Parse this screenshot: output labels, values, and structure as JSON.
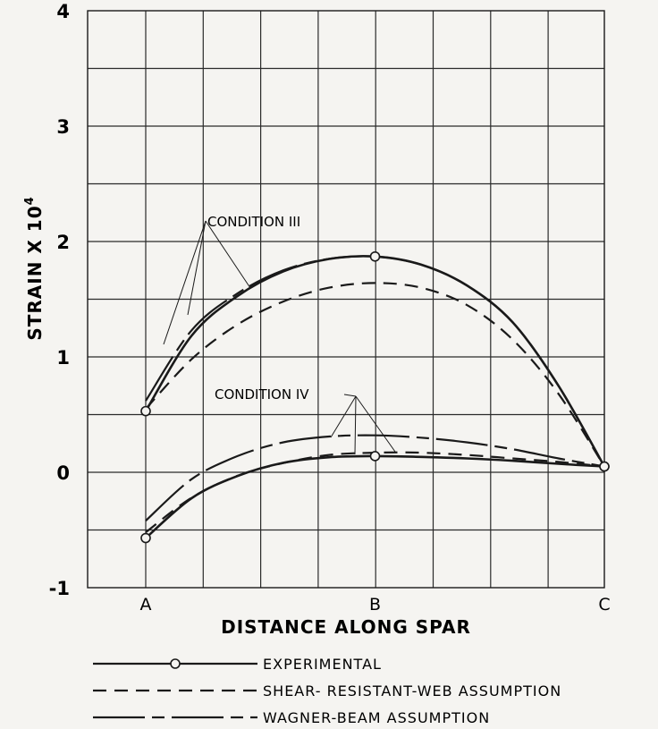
{
  "chart_data": {
    "type": "line",
    "xlabel": "DISTANCE ALONG SPAR",
    "ylabel": "STRAIN X 10",
    "ylabel_exp": "4",
    "x_categories": [
      "A",
      "B",
      "C"
    ],
    "ylim": [
      -1,
      4
    ],
    "y_ticks": [
      "-1",
      "0",
      "1",
      "2",
      "3",
      "4"
    ],
    "grid": true,
    "annotations": [
      "CONDITION III",
      "CONDITION IV"
    ],
    "legend_position": "bottom",
    "series": [
      {
        "name": "EXPERIMENTAL",
        "group": "CONDITION III",
        "style": "solid-circle",
        "x": [
          0,
          0.5,
          1.0
        ],
        "y": [
          0.53,
          1.87,
          0.05
        ]
      },
      {
        "name": "SHEAR- RESISTANT-WEB ASSUMPTION",
        "group": "CONDITION III",
        "style": "dashed",
        "x": [
          0,
          0.1,
          0.2,
          0.3,
          0.4,
          0.5,
          0.6,
          0.7,
          0.8,
          0.9,
          1.0
        ],
        "y": [
          0.55,
          0.98,
          1.28,
          1.48,
          1.6,
          1.64,
          1.6,
          1.45,
          1.15,
          0.68,
          0.05
        ]
      },
      {
        "name": "WAGNER-BEAM ASSUMPTION",
        "group": "CONDITION III",
        "style": "dash-long",
        "x": [
          0,
          0.1,
          0.2,
          0.3,
          0.4,
          0.5,
          0.6,
          0.7,
          0.8,
          0.9,
          1.0
        ],
        "y": [
          0.62,
          1.23,
          1.55,
          1.75,
          1.85,
          1.87,
          1.8,
          1.62,
          1.3,
          0.75,
          0.05
        ]
      },
      {
        "name": "EXPERIMENTAL",
        "group": "CONDITION IV",
        "style": "solid-circle",
        "x": [
          0,
          0.5,
          1.0
        ],
        "y": [
          -0.57,
          0.14,
          0.05
        ]
      },
      {
        "name": "SHEAR- RESISTANT-WEB ASSUMPTION",
        "group": "CONDITION IV",
        "style": "dashed",
        "x": [
          0,
          0.1,
          0.2,
          0.3,
          0.4,
          0.5,
          0.6,
          0.7,
          0.8,
          0.9,
          1.0
        ],
        "y": [
          -0.52,
          -0.22,
          -0.03,
          0.08,
          0.15,
          0.17,
          0.17,
          0.15,
          0.12,
          0.09,
          0.05
        ]
      },
      {
        "name": "WAGNER-BEAM ASSUMPTION",
        "group": "CONDITION IV",
        "style": "dash-long",
        "x": [
          0,
          0.1,
          0.2,
          0.3,
          0.4,
          0.5,
          0.6,
          0.7,
          0.8,
          0.9,
          1.0
        ],
        "y": [
          -0.42,
          -0.06,
          0.14,
          0.26,
          0.31,
          0.32,
          0.3,
          0.26,
          0.2,
          0.12,
          0.05
        ]
      }
    ]
  }
}
